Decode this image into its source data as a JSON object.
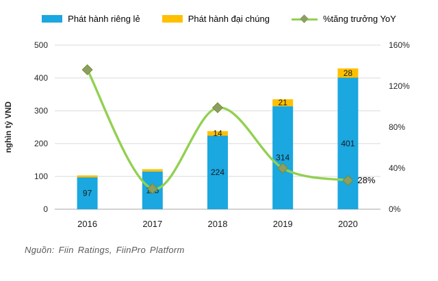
{
  "legend": [
    {
      "label": "Phát hành riêng lẻ",
      "color": "#1ba7e0",
      "type": "bar"
    },
    {
      "label": "Phát hành đại chúng",
      "color": "#ffc000",
      "type": "bar"
    },
    {
      "label": "%tăng trưởng YoY",
      "color": "#92d050",
      "marker_color": "#8e9e62",
      "type": "line"
    }
  ],
  "source": "Nguồn: Fiin Ratings, FiinPro Platform",
  "chart_data": {
    "type": "combo-bar-line",
    "categories": [
      "2016",
      "2017",
      "2018",
      "2019",
      "2020"
    ],
    "series": [
      {
        "name": "Phát hành riêng lẻ",
        "type": "bar",
        "stack": "issuance",
        "axis": "left",
        "color": "#1ba7e0",
        "values": [
          97,
          115,
          224,
          314,
          401
        ],
        "data_labels": [
          "97",
          "115",
          "224",
          "314",
          "401"
        ],
        "label_color": "#1a1a1a"
      },
      {
        "name": "Phát hành đại chúng",
        "type": "bar",
        "stack": "issuance",
        "axis": "left",
        "color": "#ffc000",
        "values": [
          6,
          7,
          14,
          21,
          28
        ],
        "data_labels": [
          "",
          "",
          "14",
          "21",
          "28"
        ],
        "label_color": "#1a1a1a"
      },
      {
        "name": "%tăng trưởng YoY",
        "type": "line",
        "axis": "right",
        "color": "#92d050",
        "marker": "diamond",
        "marker_color": "#8e9e62",
        "marker_edge": "#70902e",
        "values": [
          136,
          20,
          99,
          40,
          28
        ],
        "data_labels": [
          "",
          "",
          "",
          "",
          "28%"
        ],
        "label_color": "#000000"
      }
    ],
    "left_axis": {
      "title": "nghìn tỷ VND",
      "min": 0,
      "max": 500,
      "ticks": [
        "0",
        "100",
        "200",
        "300",
        "400",
        "500"
      ]
    },
    "right_axis": {
      "min": 0,
      "max": 160,
      "ticks": [
        "0%",
        "40%",
        "80%",
        "120%",
        "160%"
      ]
    },
    "grid": {
      "color": "#d9d9d9",
      "zero_color": "#a6a6a6"
    },
    "legend_position": "top"
  }
}
